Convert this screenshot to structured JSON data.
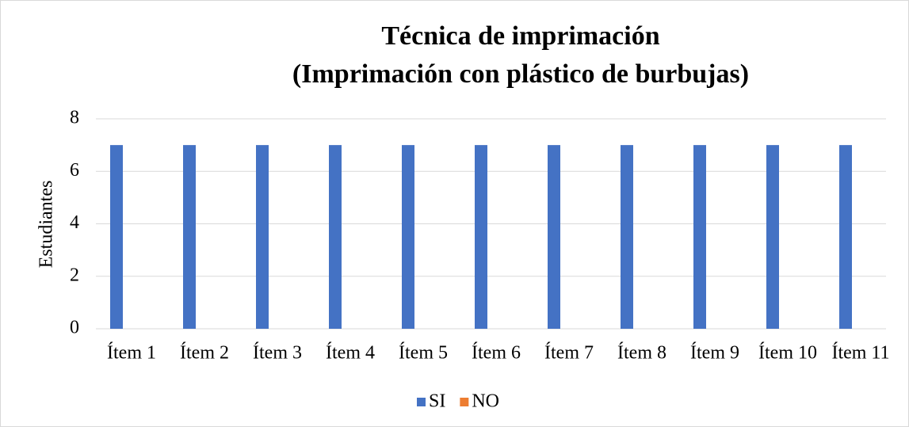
{
  "chart_data": {
    "type": "bar",
    "title": [
      "Técnica de imprimación",
      "(Imprimación con plástico de burbujas)"
    ],
    "y_label": "Estudiantes",
    "categories": [
      "Ítem 1",
      "Ítem 2",
      "Ítem 3",
      "Ítem 4",
      "Ítem 5",
      "Ítem 6",
      "Ítem 7",
      "Ítem 8",
      "Ítem 9",
      "Ítem 10",
      "Ítem 11"
    ],
    "series": [
      {
        "name": "SI",
        "color": "#4472c4",
        "values": [
          7,
          7,
          7,
          7,
          7,
          7,
          7,
          7,
          7,
          7,
          7
        ]
      },
      {
        "name": "NO",
        "color": "#ed7d31",
        "values": [
          0,
          0,
          0,
          0,
          0,
          0,
          0,
          0,
          0,
          0,
          0
        ]
      }
    ],
    "ylim": [
      0,
      8
    ],
    "yticks": [
      0,
      2,
      4,
      6,
      8
    ],
    "grid": true,
    "legend": "bottom"
  }
}
